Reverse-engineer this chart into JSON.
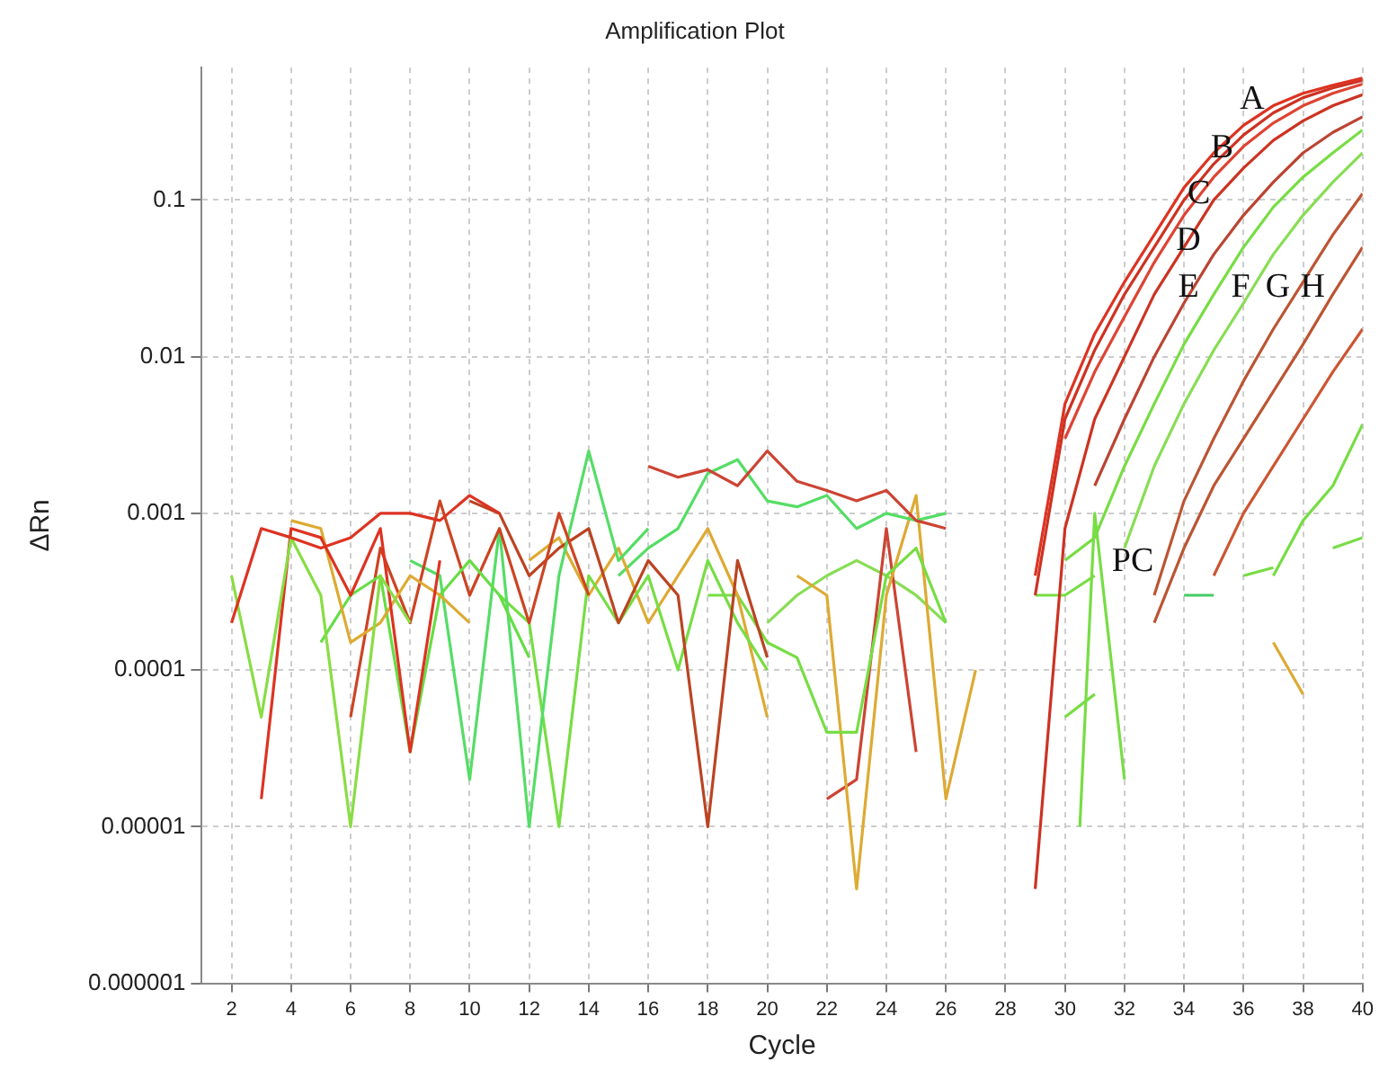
{
  "chart_data": {
    "type": "line",
    "title": "Amplification Plot",
    "xlabel": "Cycle",
    "ylabel": "ΔRn",
    "log": "y",
    "grid": true,
    "legend": false,
    "marker": "none",
    "line_style": "solid",
    "xlim": [
      1,
      40
    ],
    "xticks": [
      2,
      4,
      6,
      8,
      10,
      12,
      14,
      16,
      18,
      20,
      22,
      24,
      26,
      28,
      30,
      32,
      34,
      36,
      38,
      40
    ],
    "ylim": [
      1e-06,
      0.7
    ],
    "yticks": [
      {
        "value": 1e-06,
        "label": "0.000001"
      },
      {
        "value": 1e-05,
        "label": "0.00001"
      },
      0.0001,
      0.001,
      0.01,
      0.1
    ],
    "series": [
      {
        "color": "#dd3322",
        "x": [
          29,
          30,
          31,
          32,
          33,
          34,
          35,
          36,
          37,
          38,
          39,
          40
        ],
        "values": [
          0.0004,
          0.005,
          0.014,
          0.03,
          0.06,
          0.12,
          0.2,
          0.3,
          0.4,
          0.48,
          0.54,
          0.6
        ]
      },
      {
        "color": "#cc3322",
        "x": [
          29,
          30,
          31,
          32,
          33,
          34,
          35,
          36,
          37,
          38,
          39,
          40
        ],
        "values": [
          0.0003,
          0.004,
          0.011,
          0.025,
          0.05,
          0.1,
          0.17,
          0.26,
          0.36,
          0.45,
          0.52,
          0.58
        ]
      },
      {
        "color": "#dd4433",
        "x": [
          30,
          31,
          32,
          33,
          34,
          35,
          36,
          37,
          38,
          39,
          40
        ],
        "values": [
          0.003,
          0.008,
          0.018,
          0.04,
          0.08,
          0.14,
          0.22,
          0.31,
          0.4,
          0.48,
          0.55
        ]
      },
      {
        "color": "#cc3322",
        "x": [
          29,
          30,
          31,
          32,
          33,
          34,
          35,
          36,
          37,
          38,
          39,
          40
        ],
        "values": [
          4e-06,
          0.0008,
          0.004,
          0.01,
          0.025,
          0.05,
          0.1,
          0.16,
          0.24,
          0.32,
          0.4,
          0.47
        ]
      },
      {
        "color": "#bb4433",
        "x": [
          31,
          32,
          33,
          34,
          35,
          36,
          37,
          38,
          39,
          40
        ],
        "values": [
          0.0015,
          0.004,
          0.01,
          0.022,
          0.045,
          0.08,
          0.13,
          0.2,
          0.27,
          0.34
        ]
      },
      {
        "color": "#77dd44",
        "x": [
          30,
          31,
          32,
          33,
          34,
          35,
          36,
          37,
          38,
          39,
          40
        ],
        "values": [
          0.0005,
          0.0007,
          0.002,
          0.005,
          0.012,
          0.025,
          0.05,
          0.09,
          0.14,
          0.2,
          0.28
        ]
      },
      {
        "color": "#88dd55",
        "x": [
          32,
          33,
          34,
          35,
          36,
          37,
          38,
          39,
          40
        ],
        "values": [
          0.0006,
          0.002,
          0.005,
          0.011,
          0.022,
          0.045,
          0.08,
          0.13,
          0.2
        ]
      },
      {
        "color": "#bb5533",
        "x": [
          33,
          34,
          35,
          36,
          37,
          38,
          39,
          40
        ],
        "values": [
          0.0003,
          0.0012,
          0.003,
          0.007,
          0.015,
          0.03,
          0.06,
          0.11
        ]
      },
      {
        "color": "#bb5533",
        "x": [
          33,
          34,
          35,
          36,
          37,
          38,
          39,
          40
        ],
        "values": [
          0.0002,
          0.0006,
          0.0015,
          0.003,
          0.006,
          0.012,
          0.025,
          0.05
        ]
      },
      {
        "color": "#cc5533",
        "x": [
          35,
          36,
          37,
          38,
          39,
          40
        ],
        "values": [
          0.0004,
          0.001,
          0.002,
          0.004,
          0.008,
          0.015
        ]
      },
      {
        "color": "#77dd44",
        "x": [
          37,
          38,
          39,
          40
        ],
        "values": [
          0.0004,
          0.0009,
          0.0015,
          0.0037
        ]
      },
      {
        "color": "#dd3322",
        "x": [
          2,
          3,
          4,
          5,
          6,
          7,
          8,
          9,
          10,
          11
        ],
        "values": [
          0.0002,
          0.0008,
          0.0007,
          0.0006,
          0.0007,
          0.001,
          0.001,
          0.0009,
          0.0013,
          0.001
        ]
      },
      {
        "color": "#88dd44",
        "x": [
          2,
          3,
          4,
          5,
          6,
          7,
          8
        ],
        "values": [
          0.0004,
          5e-05,
          0.0007,
          0.0003,
          1e-05,
          0.0004,
          0.0002
        ]
      },
      {
        "color": "#dd3322",
        "x": [
          3,
          4,
          5,
          6,
          7,
          8,
          9
        ],
        "values": [
          1.5e-05,
          0.0008,
          0.0007,
          0.0003,
          0.0008,
          3e-05,
          0.0005
        ]
      },
      {
        "color": "#ddaa33",
        "x": [
          4,
          5,
          6,
          7,
          8,
          9,
          10
        ],
        "values": [
          0.0009,
          0.0008,
          0.00015,
          0.0002,
          0.0004,
          0.0003,
          0.0002
        ]
      },
      {
        "color": "#66dd44",
        "x": [
          5,
          6,
          7,
          8,
          9,
          10,
          11,
          12
        ],
        "values": [
          0.00015,
          0.0003,
          0.0004,
          3e-05,
          0.0003,
          0.0005,
          0.0003,
          0.00012
        ]
      },
      {
        "color": "#cc4422",
        "x": [
          6,
          7,
          8,
          9,
          10,
          11,
          12,
          13,
          14
        ],
        "values": [
          5e-05,
          0.0006,
          0.0002,
          0.0012,
          0.0003,
          0.0008,
          0.0002,
          0.001,
          0.0003
        ]
      },
      {
        "color": "#55dd66",
        "x": [
          8,
          9,
          10,
          11,
          12,
          13,
          14,
          15,
          16
        ],
        "values": [
          0.0005,
          0.0004,
          2e-05,
          0.0008,
          1e-05,
          0.0004,
          0.0025,
          0.0005,
          0.0008
        ]
      },
      {
        "color": "#bb4422",
        "x": [
          10,
          11,
          12,
          13,
          14,
          15,
          16,
          17,
          18,
          19,
          20
        ],
        "values": [
          0.0012,
          0.001,
          0.0004,
          0.0006,
          0.0008,
          0.0002,
          0.0005,
          0.0003,
          1e-05,
          0.0005,
          0.00012
        ]
      },
      {
        "color": "#77dd44",
        "x": [
          11,
          12,
          13,
          14,
          15,
          16,
          17,
          18,
          19,
          20
        ],
        "values": [
          0.0003,
          0.0002,
          1e-05,
          0.0004,
          0.0002,
          0.0004,
          0.0001,
          0.0005,
          0.0002,
          0.0001
        ]
      },
      {
        "color": "#ddaa33",
        "x": [
          12,
          13,
          14,
          15,
          16,
          17,
          18,
          19,
          20
        ],
        "values": [
          0.0005,
          0.0007,
          0.0003,
          0.0006,
          0.0002,
          0.0004,
          0.0008,
          0.0003,
          5e-05
        ]
      },
      {
        "color": "#cc4433",
        "x": [
          16,
          17,
          18,
          19,
          20,
          21,
          22,
          23,
          24,
          25,
          26
        ],
        "values": [
          0.002,
          0.0017,
          0.0019,
          0.0015,
          0.0025,
          0.0016,
          0.0014,
          0.0012,
          0.0014,
          0.0009,
          0.0008
        ]
      },
      {
        "color": "#55dd66",
        "x": [
          15,
          16,
          17,
          18,
          19,
          20,
          21,
          22,
          23,
          24,
          25,
          26
        ],
        "values": [
          0.0004,
          0.0006,
          0.0008,
          0.0018,
          0.0022,
          0.0012,
          0.0011,
          0.0013,
          0.0008,
          0.001,
          0.0009,
          0.001
        ]
      },
      {
        "color": "#77dd44",
        "x": [
          18,
          19,
          20,
          21,
          22,
          23,
          24,
          25,
          26
        ],
        "values": [
          0.0003,
          0.0003,
          0.00015,
          0.00012,
          4e-05,
          4e-05,
          0.0004,
          0.0006,
          0.0002
        ]
      },
      {
        "color": "#ddaa33",
        "x": [
          21,
          22,
          23,
          24,
          25,
          26,
          27
        ],
        "values": [
          0.0004,
          0.0003,
          4e-06,
          0.0003,
          0.0013,
          1.5e-05,
          0.0001
        ]
      },
      {
        "color": "#cc4433",
        "x": [
          22,
          23,
          24,
          25
        ],
        "values": [
          1.5e-05,
          2e-05,
          0.0008,
          3e-05
        ]
      },
      {
        "color": "#88dd55",
        "x": [
          20,
          21,
          22,
          23,
          24,
          25,
          26
        ],
        "values": [
          0.0002,
          0.0003,
          0.0004,
          0.0005,
          0.0004,
          0.0003,
          0.0002
        ]
      },
      {
        "color": "#77dd44",
        "x": [
          29,
          30,
          31
        ],
        "values": [
          0.0003,
          0.0003,
          0.0004
        ]
      },
      {
        "color": "#77dd44",
        "x": [
          30,
          31
        ],
        "values": [
          5e-05,
          7e-05
        ]
      },
      {
        "color": "#77dd44",
        "x": [
          30.5,
          31,
          32
        ],
        "values": [
          1e-05,
          0.001,
          2e-05
        ]
      },
      {
        "color": "#44cc66",
        "x": [
          34,
          35
        ],
        "values": [
          0.0003,
          0.0003
        ]
      },
      {
        "color": "#77dd44",
        "x": [
          36,
          37
        ],
        "values": [
          0.0004,
          0.00045
        ]
      },
      {
        "color": "#77dd44",
        "x": [
          39,
          40
        ],
        "values": [
          0.0006,
          0.0007
        ]
      },
      {
        "color": "#ddaa33",
        "x": [
          37,
          38
        ],
        "values": [
          0.00015,
          7e-05
        ]
      }
    ],
    "annotations": [
      "A",
      "B",
      "C",
      "D",
      "E",
      "F",
      "G",
      "H",
      "PC"
    ]
  }
}
